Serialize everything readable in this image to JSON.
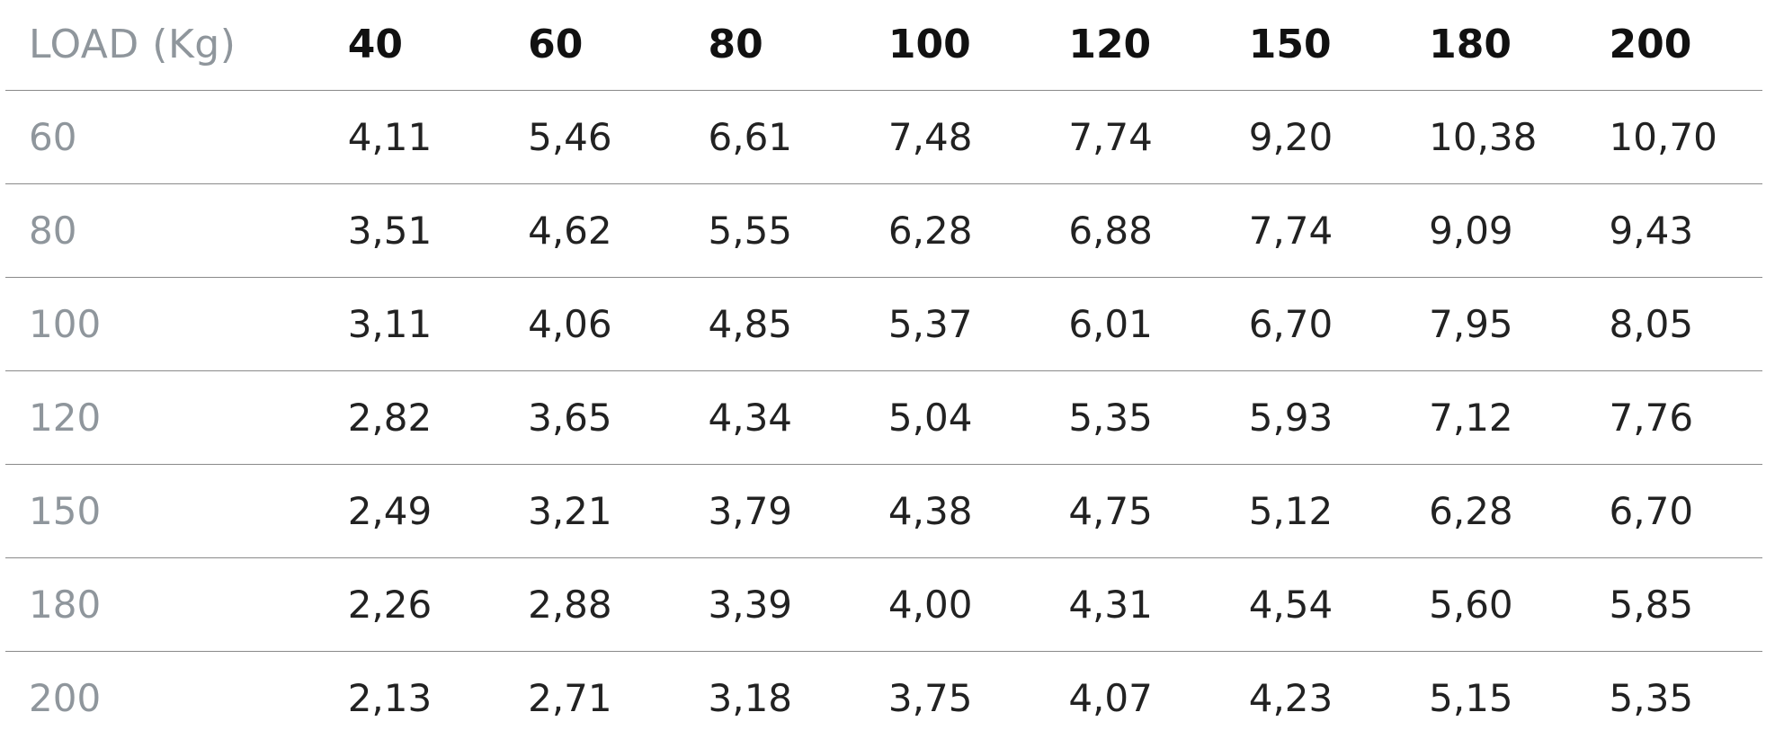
{
  "table": {
    "corner_label": "LOAD (Kg)",
    "columns": [
      "40",
      "60",
      "80",
      "100",
      "120",
      "150",
      "180",
      "200"
    ],
    "rows": [
      {
        "label": "60",
        "values": [
          "4,11",
          "5,46",
          "6,61",
          "7,48",
          "7,74",
          "9,20",
          "10,38",
          "10,70"
        ]
      },
      {
        "label": "80",
        "values": [
          "3,51",
          "4,62",
          "5,55",
          "6,28",
          "6,88",
          "7,74",
          "9,09",
          "9,43"
        ]
      },
      {
        "label": "100",
        "values": [
          "3,11",
          "4,06",
          "4,85",
          "5,37",
          "6,01",
          "6,70",
          "7,95",
          "8,05"
        ]
      },
      {
        "label": "120",
        "values": [
          "2,82",
          "3,65",
          "4,34",
          "5,04",
          "5,35",
          "5,93",
          "7,12",
          "7,76"
        ]
      },
      {
        "label": "150",
        "values": [
          "2,49",
          "3,21",
          "3,79",
          "4,38",
          "4,75",
          "5,12",
          "6,28",
          "6,70"
        ]
      },
      {
        "label": "180",
        "values": [
          "2,26",
          "2,88",
          "3,39",
          "4,00",
          "4,31",
          "4,54",
          "5,60",
          "5,85"
        ]
      },
      {
        "label": "200",
        "values": [
          "2,13",
          "2,71",
          "3,18",
          "3,75",
          "4,07",
          "4,23",
          "5,15",
          "5,35"
        ]
      }
    ]
  },
  "colors": {
    "label_gray": "#8f969c",
    "header_black": "#111111",
    "value_dark": "#222222",
    "rule_gray": "#8a8a8a"
  }
}
